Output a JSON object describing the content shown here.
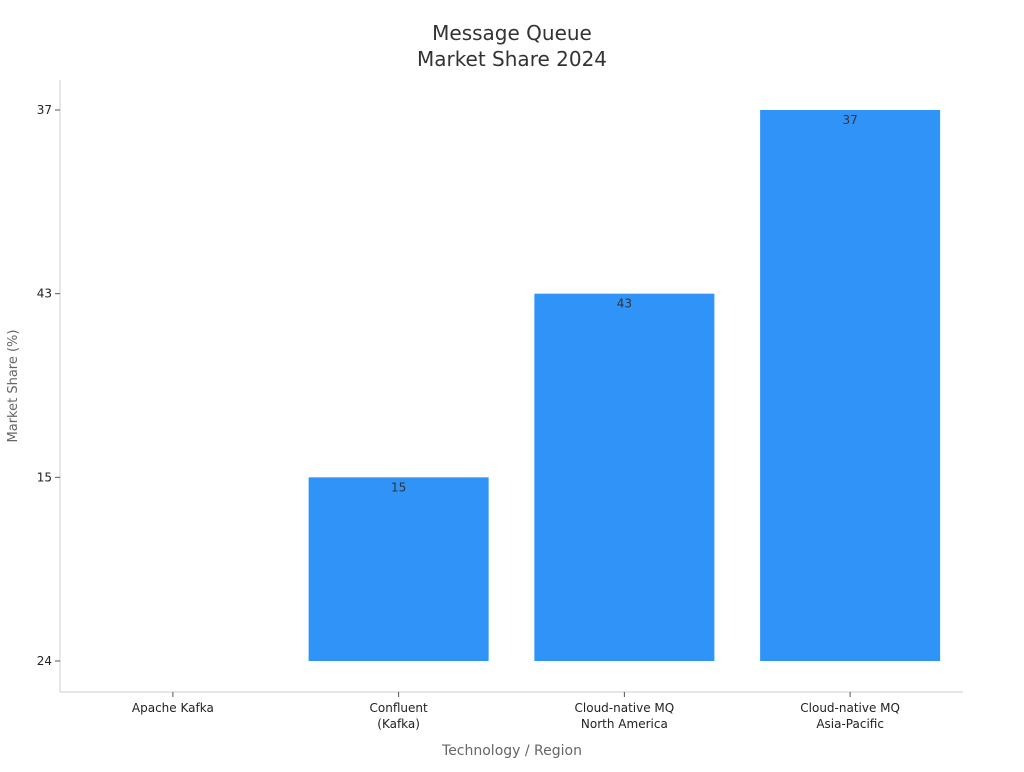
{
  "chart_data": {
    "type": "bar",
    "title_lines": [
      "Message Queue",
      "Market Share 2024"
    ],
    "xlabel": "Technology / Region",
    "ylabel": "Market Share (%)",
    "categories": [
      [
        "Apache Kafka"
      ],
      [
        "Confluent",
        "(Kafka)"
      ],
      [
        "Cloud-native MQ",
        "North America"
      ],
      [
        "Cloud-native MQ",
        "Asia-Pacific"
      ]
    ],
    "values": [
      24,
      15,
      43,
      37
    ],
    "value_labels": [
      "",
      "15",
      "43",
      "37"
    ],
    "yticks": [
      "24",
      "15",
      "43",
      "37"
    ],
    "grid": false,
    "colors": {
      "bar": "#2f93f8",
      "text": "#333333",
      "axis_label": "#666666",
      "axis_line": "#cccccc",
      "tick_text": "#222222"
    }
  }
}
